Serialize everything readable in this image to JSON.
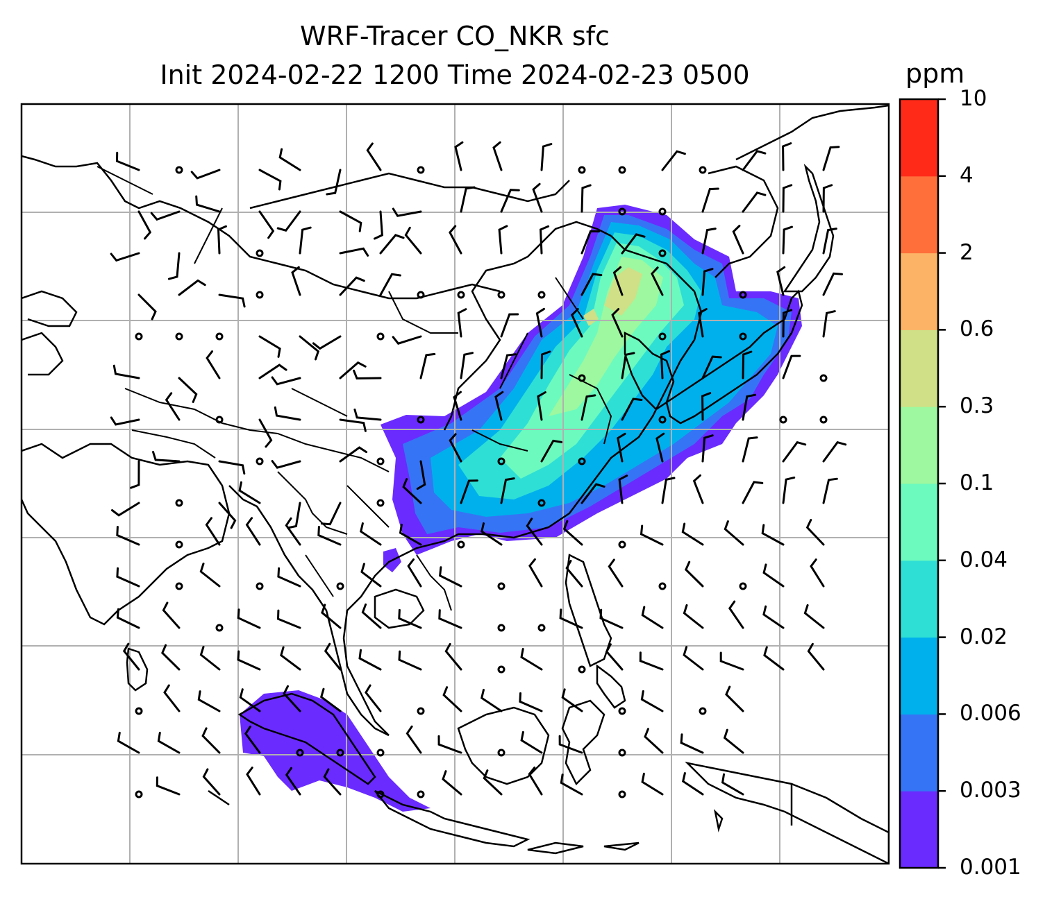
{
  "title_line1": "WRF-Tracer CO_NKR sfc",
  "title_line2": "Init 2024-02-22 1200 Time 2024-02-23 0500",
  "colorbar": {
    "unit": "ppm",
    "levels": [
      "0.001",
      "0.003",
      "0.006",
      "0.02",
      "0.04",
      "0.1",
      "0.3",
      "0.6",
      "2",
      "4",
      "10"
    ],
    "colors": [
      "#6a2bff",
      "#3574f5",
      "#00b0ec",
      "#2edfd5",
      "#6cfabf",
      "#9df89f",
      "#cfe087",
      "#fdb366",
      "#ff6f3a",
      "#ff2a18"
    ]
  },
  "map": {
    "features": [
      "coastlines",
      "country-borders",
      "lat-lon-gridlines",
      "wind-barbs"
    ],
    "field": "CO_NKR tracer surface concentration",
    "plumes": [
      "east-china-korea-japan",
      "southeast-asia",
      "sumatra"
    ]
  }
}
